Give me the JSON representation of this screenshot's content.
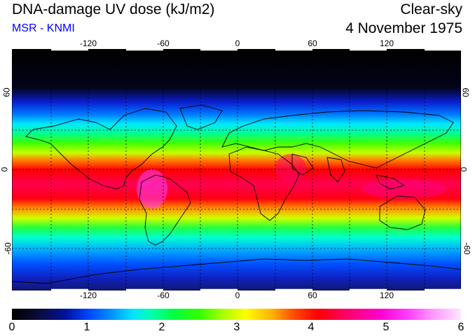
{
  "header": {
    "title": "DNA-damage UV dose (kJ/m2)",
    "source": "MSR - KNMI",
    "condition": "Clear-sky",
    "date": "4 November 1975"
  },
  "axes": {
    "lon_ticks": [
      "-120",
      "-60",
      "0",
      "60",
      "120"
    ],
    "lat_left": [
      "60",
      "0",
      "-60"
    ],
    "lat_right": [
      "60",
      "0",
      "-60"
    ]
  },
  "colorbar": {
    "labels": [
      "0",
      "1",
      "2",
      "3",
      "4",
      "5",
      "6"
    ]
  }
}
